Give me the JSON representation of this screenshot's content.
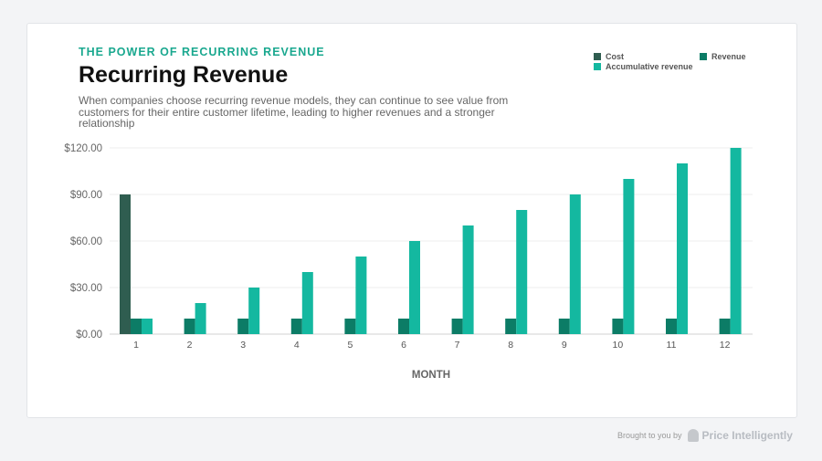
{
  "header": {
    "eyebrow": "THE POWER OF RECURRING REVENUE",
    "title": "Recurring Revenue",
    "subtitle": "When companies choose recurring revenue models, they can continue to see value from customers for their entire customer lifetime, leading to higher revenues and a stronger relationship"
  },
  "footer": {
    "text": "Brought to you by",
    "brand": "Price Intelligently"
  },
  "chart_data": {
    "type": "bar",
    "xlabel": "MONTH",
    "ylabel": "",
    "ylim": [
      0,
      120
    ],
    "yticks": [
      "$0.00",
      "$30.00",
      "$60.00",
      "$90.00",
      "$120.00"
    ],
    "ytick_values": [
      0,
      30,
      60,
      90,
      120
    ],
    "grid": true,
    "legend": "top-right",
    "categories": [
      "1",
      "2",
      "3",
      "4",
      "5",
      "6",
      "7",
      "8",
      "9",
      "10",
      "11",
      "12"
    ],
    "series": [
      {
        "name": "Cost",
        "color": "#2f5d50",
        "values": [
          90,
          0,
          0,
          0,
          0,
          0,
          0,
          0,
          0,
          0,
          0,
          0
        ]
      },
      {
        "name": "Revenue",
        "color": "#0c7c66",
        "values": [
          10,
          10,
          10,
          10,
          10,
          10,
          10,
          10,
          10,
          10,
          10,
          10
        ]
      },
      {
        "name": "Accumulative revenue",
        "color": "#14b8a0",
        "values": [
          10,
          20,
          30,
          40,
          50,
          60,
          70,
          80,
          90,
          100,
          110,
          120
        ]
      }
    ]
  }
}
